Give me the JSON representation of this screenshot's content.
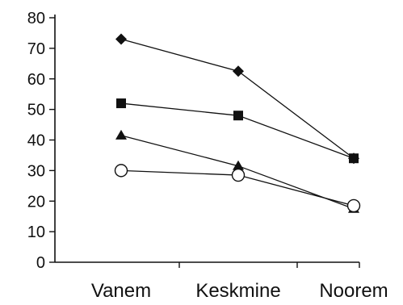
{
  "chart_data": {
    "type": "line",
    "categories": [
      "Vanem",
      "Keskmine",
      "Noorem"
    ],
    "ylim": [
      0,
      80
    ],
    "yticks": [
      "0",
      "10",
      "20",
      "30",
      "40",
      "50",
      "60",
      "70",
      "80"
    ],
    "grid": false,
    "legend": "none",
    "series": [
      {
        "marker": "diamond",
        "values": [
          73,
          62.5,
          34
        ]
      },
      {
        "marker": "square",
        "values": [
          52,
          48,
          34
        ]
      },
      {
        "marker": "triangle",
        "values": [
          41.5,
          31.5,
          17.5
        ]
      },
      {
        "marker": "open-circle",
        "values": [
          30,
          28.5,
          18.5
        ]
      }
    ],
    "colors": {
      "line": "#111111",
      "marker": "#111111",
      "background": "#ffffff"
    }
  }
}
